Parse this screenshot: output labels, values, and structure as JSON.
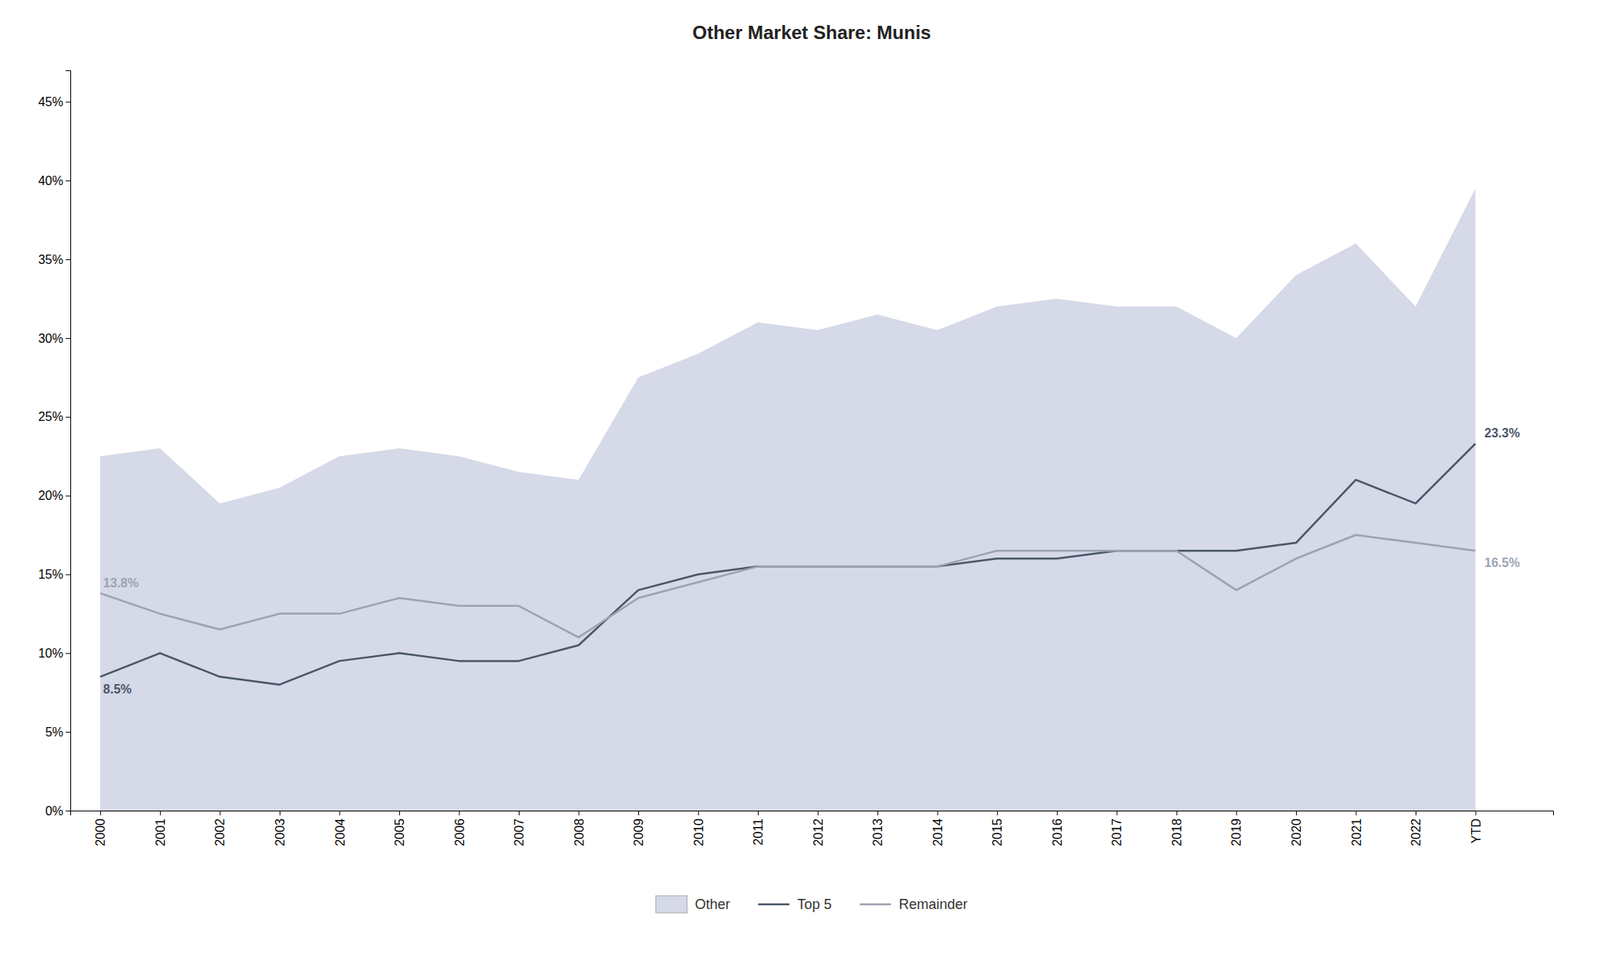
{
  "chart_data": {
    "type": "line",
    "title": "Other Market Share: Munis",
    "categories": [
      "2000",
      "2001",
      "2002",
      "2003",
      "2004",
      "2005",
      "2006",
      "2007",
      "2008",
      "2009",
      "2010",
      "2011",
      "2012",
      "2013",
      "2014",
      "2015",
      "2016",
      "2017",
      "2018",
      "2019",
      "2020",
      "2021",
      "2022",
      "YTD"
    ],
    "series": [
      {
        "name": "Other",
        "type": "area",
        "color": "#d5d9e8",
        "values": [
          22.5,
          23.0,
          19.5,
          20.5,
          22.5,
          23.0,
          22.5,
          21.5,
          21.0,
          27.5,
          29.0,
          31.0,
          30.5,
          31.5,
          30.5,
          32.0,
          32.5,
          32.0,
          32.0,
          30.0,
          34.0,
          36.0,
          32.0,
          39.5
        ]
      },
      {
        "name": "Top 5",
        "type": "line",
        "color": "#4a5568",
        "values": [
          8.5,
          10.0,
          8.5,
          8.0,
          9.5,
          10.0,
          9.5,
          9.5,
          10.5,
          14.0,
          15.0,
          15.5,
          15.5,
          15.5,
          15.5,
          16.0,
          16.0,
          16.5,
          16.5,
          16.5,
          17.0,
          21.0,
          19.5,
          23.3
        ]
      },
      {
        "name": "Remainder",
        "type": "line",
        "color": "#9ca3b0",
        "values": [
          13.8,
          12.5,
          11.5,
          12.5,
          12.5,
          13.5,
          13.0,
          13.0,
          11.0,
          13.5,
          14.5,
          15.5,
          15.5,
          15.5,
          15.5,
          16.5,
          16.5,
          16.5,
          16.5,
          14.0,
          16.0,
          17.5,
          17.0,
          16.5
        ]
      }
    ],
    "ylim": [
      0,
      47
    ],
    "yticks": [
      {
        "value": 0,
        "label": "0%"
      },
      {
        "value": 5,
        "label": "5%"
      },
      {
        "value": 10,
        "label": "10%"
      },
      {
        "value": 15,
        "label": "15%"
      },
      {
        "value": 20,
        "label": "20%"
      },
      {
        "value": 25,
        "label": "25%"
      },
      {
        "value": 30,
        "label": "30%"
      },
      {
        "value": 35,
        "label": "35%"
      },
      {
        "value": 40,
        "label": "40%"
      },
      {
        "value": 45,
        "label": "45%"
      }
    ],
    "annotations": [
      {
        "text": "8.5%",
        "x": "2000",
        "y": 8.5,
        "series": "Top 5"
      },
      {
        "text": "13.8%",
        "x": "2000",
        "y": 13.8,
        "series": "Remainder"
      },
      {
        "text": "23.3%",
        "x": "YTD",
        "y": 23.3,
        "series": "Top 5"
      },
      {
        "text": "16.5%",
        "x": "YTD",
        "y": 16.5,
        "series": "Remainder"
      }
    ],
    "grid": false,
    "legend": "bottom"
  }
}
